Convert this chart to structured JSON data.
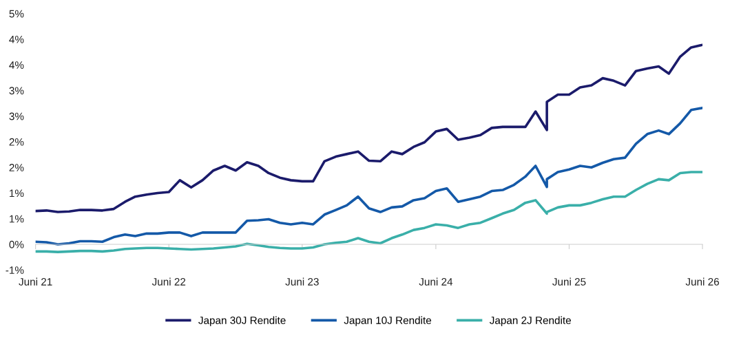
{
  "chart_data": {
    "type": "line",
    "x": [
      "2021-06",
      "2021-07",
      "2021-08",
      "2021-09",
      "2021-10",
      "2021-11",
      "2021-12",
      "2022-01",
      "2022-02",
      "2022-03",
      "2022-04",
      "2022-05",
      "2022-06",
      "2022-07",
      "2022-08",
      "2022-09",
      "2022-10",
      "2022-11",
      "2022-12",
      "2023-01",
      "2023-02",
      "2023-03",
      "2023-04",
      "2023-05",
      "2023-06",
      "2023-07",
      "2023-08",
      "2023-09",
      "2023-10",
      "2023-11",
      "2023-12",
      "2024-01",
      "2024-02",
      "2024-03",
      "2024-04",
      "2024-05",
      "2024-06",
      "2024-07",
      "2024-08",
      "2024-09",
      "2024-10",
      "2024-11",
      "2024-12",
      "2025-01",
      "2025-02",
      "2025-03",
      "2025-04-01",
      "2025-04",
      "2025-05",
      "2025-06",
      "2025-07",
      "2025-08",
      "2025-09",
      "2025-10",
      "2025-11",
      "2025-12",
      "2026-01",
      "2026-02",
      "2026-03",
      "2026-04",
      "2026-05",
      "2026-06"
    ],
    "series": [
      {
        "name": "Japan 30J Rendite",
        "color": "#1b1b6b",
        "values": [
          0.65,
          0.66,
          0.63,
          0.64,
          0.67,
          0.67,
          0.66,
          0.69,
          0.83,
          0.93,
          0.97,
          1.0,
          1.02,
          1.25,
          1.11,
          1.25,
          1.44,
          1.53,
          1.44,
          1.6,
          1.53,
          1.39,
          1.3,
          1.25,
          1.23,
          1.23,
          1.62,
          1.71,
          1.76,
          1.81,
          1.63,
          1.62,
          1.81,
          1.76,
          1.9,
          1.99,
          2.2,
          2.25,
          2.04,
          2.08,
          2.13,
          2.27,
          2.29,
          2.29,
          2.29,
          2.59,
          2.23,
          2.78,
          2.92,
          2.92,
          3.06,
          3.1,
          3.24,
          3.19,
          3.1,
          3.38,
          3.43,
          3.47,
          3.33,
          3.66,
          3.84,
          3.89
        ]
      },
      {
        "name": "Japan 10J Rendite",
        "color": "#1459a8",
        "values": [
          0.05,
          0.04,
          0.0,
          0.02,
          0.06,
          0.06,
          0.05,
          0.14,
          0.19,
          0.16,
          0.21,
          0.21,
          0.23,
          0.23,
          0.16,
          0.23,
          0.23,
          0.23,
          0.23,
          0.46,
          0.47,
          0.49,
          0.42,
          0.39,
          0.42,
          0.39,
          0.58,
          0.67,
          0.76,
          0.93,
          0.7,
          0.63,
          0.72,
          0.74,
          0.86,
          0.9,
          1.04,
          1.09,
          0.83,
          0.88,
          0.93,
          1.04,
          1.06,
          1.16,
          1.32,
          1.53,
          1.12,
          1.27,
          1.41,
          1.46,
          1.53,
          1.5,
          1.59,
          1.66,
          1.69,
          1.96,
          2.15,
          2.22,
          2.15,
          2.36,
          2.62,
          2.66
        ]
      },
      {
        "name": "Japan 2J Rendite",
        "color": "#3aafa9",
        "values": [
          -0.14,
          -0.14,
          -0.15,
          -0.14,
          -0.13,
          -0.13,
          -0.14,
          -0.12,
          -0.09,
          -0.08,
          -0.07,
          -0.07,
          -0.08,
          -0.09,
          -0.1,
          -0.09,
          -0.08,
          -0.06,
          -0.04,
          0.01,
          -0.02,
          -0.05,
          -0.07,
          -0.08,
          -0.08,
          -0.06,
          0.0,
          0.03,
          0.05,
          0.12,
          0.05,
          0.02,
          0.12,
          0.19,
          0.28,
          0.32,
          0.39,
          0.37,
          0.32,
          0.39,
          0.42,
          0.51,
          0.6,
          0.67,
          0.81,
          0.86,
          0.6,
          0.63,
          0.72,
          0.76,
          0.76,
          0.81,
          0.88,
          0.93,
          0.93,
          1.06,
          1.18,
          1.27,
          1.25,
          1.39,
          1.41,
          1.41
        ]
      }
    ],
    "xlim": [
      "2021-06",
      "2026-06"
    ],
    "xticks": [
      {
        "value": "2021-06",
        "label": "Juni 21"
      },
      {
        "value": "2022-06",
        "label": "Juni 22"
      },
      {
        "value": "2023-06",
        "label": "Juni 23"
      },
      {
        "value": "2024-06",
        "label": "Juni 24"
      },
      {
        "value": "2025-06",
        "label": "Juni 25"
      },
      {
        "value": "2026-06",
        "label": "Juni 26"
      }
    ],
    "ylim": [
      -0.5,
      4.5
    ],
    "yticks": [
      {
        "value": 4.5,
        "label": "5%"
      },
      {
        "value": 4,
        "label": "4%"
      },
      {
        "value": 3.5,
        "label": "4%"
      },
      {
        "value": 3,
        "label": "3%"
      },
      {
        "value": 2.5,
        "label": "3%"
      },
      {
        "value": 2,
        "label": "2%"
      },
      {
        "value": 1.5,
        "label": "2%"
      },
      {
        "value": 1,
        "label": "1%"
      },
      {
        "value": 0.5,
        "label": "1%"
      },
      {
        "value": 0,
        "label": "0%"
      },
      {
        "value": -0.5,
        "label": "-1%"
      }
    ],
    "ref_lines": [
      {
        "axis": "y",
        "value": 0,
        "color": "#cccccc"
      }
    ],
    "grid": false,
    "legend": "bottom",
    "line_style": "solid",
    "marker": "none"
  }
}
